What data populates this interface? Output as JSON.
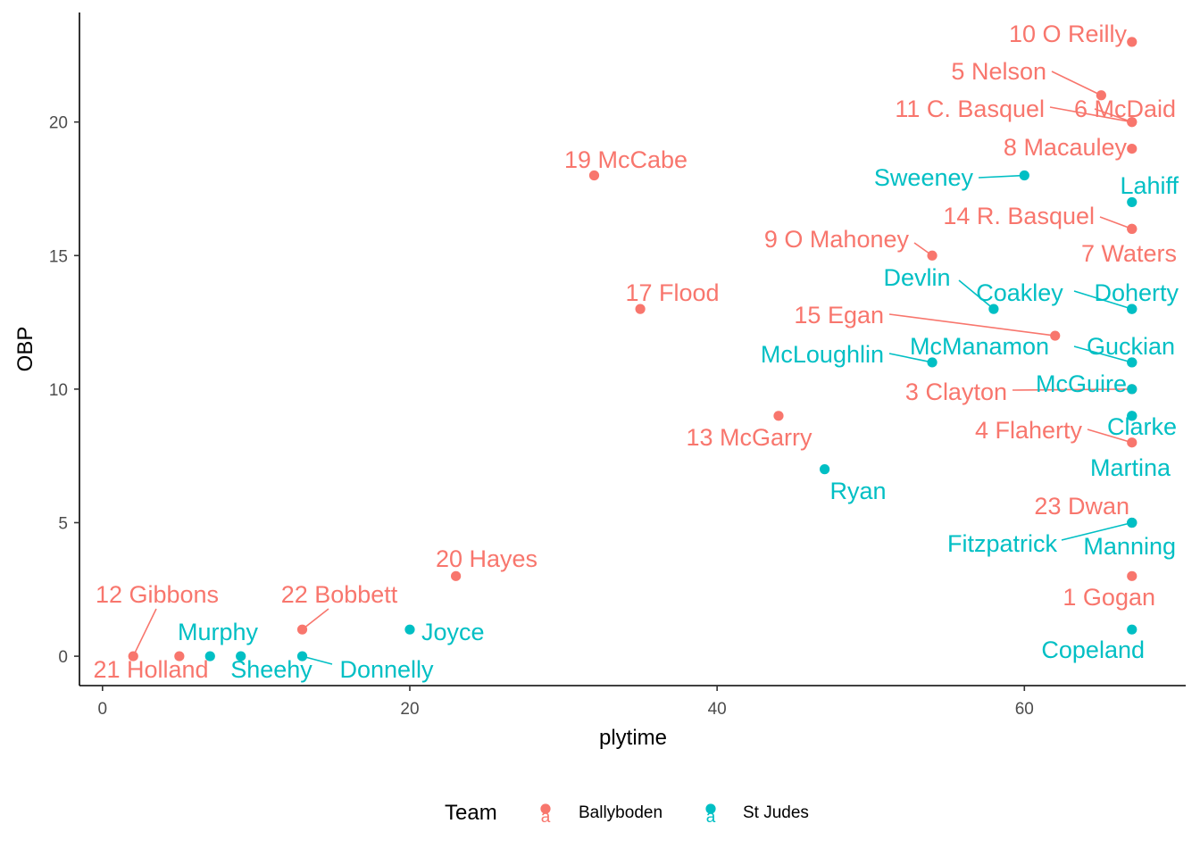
{
  "chart_data": {
    "type": "scatter",
    "xlabel": "plytime",
    "ylabel": "OBP",
    "xlim": [
      -1.5,
      70.5
    ],
    "ylim": [
      -1.1,
      24.1
    ],
    "x_ticks": [
      0,
      20,
      40,
      60
    ],
    "y_ticks": [
      0,
      5,
      10,
      15,
      20
    ],
    "grid": false,
    "legend": {
      "title": "Team",
      "position": "bottom",
      "key_glyph": "a",
      "entries": [
        {
          "name": "Ballyboden",
          "color": "#F8766D"
        },
        {
          "name": "St Judes",
          "color": "#00BFC4"
        }
      ]
    },
    "series": [
      {
        "name": "Ballyboden",
        "color": "#F8766D",
        "points": [
          {
            "label": "10  O Reilly",
            "x": 67,
            "y": 23
          },
          {
            "label": "5 Nelson",
            "x": 65,
            "y": 21
          },
          {
            "label": "6 McDaid",
            "x": 67,
            "y": 20
          },
          {
            "label": "11 C. Basquel",
            "x": 67,
            "y": 20
          },
          {
            "label": "8 Macauley",
            "x": 67,
            "y": 19
          },
          {
            "label": "19 McCabe",
            "x": 32,
            "y": 18
          },
          {
            "label": "14 R. Basquel",
            "x": 67,
            "y": 16
          },
          {
            "label": "7 Waters",
            "x": 67,
            "y": 16
          },
          {
            "label": "9 O Mahoney",
            "x": 54,
            "y": 15
          },
          {
            "label": "17 Flood",
            "x": 35,
            "y": 13
          },
          {
            "label": "15 Egan",
            "x": 62,
            "y": 12
          },
          {
            "label": "3 Clayton",
            "x": 67,
            "y": 10
          },
          {
            "label": "13 McGarry",
            "x": 44,
            "y": 9
          },
          {
            "label": "4 Flaherty",
            "x": 67,
            "y": 8
          },
          {
            "label": "23 Dwan",
            "x": 67,
            "y": 5
          },
          {
            "label": "20 Hayes",
            "x": 23,
            "y": 3
          },
          {
            "label": "1 Gogan",
            "x": 67,
            "y": 3
          },
          {
            "label": "22 Bobbett",
            "x": 13,
            "y": 1
          },
          {
            "label": "12 Gibbons",
            "x": 2,
            "y": 0
          },
          {
            "label": "21 Holland",
            "x": 5,
            "y": 0
          }
        ]
      },
      {
        "name": "St Judes",
        "color": "#00BFC4",
        "points": [
          {
            "label": "Sweeney",
            "x": 60,
            "y": 18
          },
          {
            "label": "Lahiff",
            "x": 67,
            "y": 17
          },
          {
            "label": "Devlin",
            "x": 58,
            "y": 13
          },
          {
            "label": "Coakley",
            "x": 67,
            "y": 13
          },
          {
            "label": "Doherty",
            "x": 67,
            "y": 13
          },
          {
            "label": "McLoughlin",
            "x": 54,
            "y": 11
          },
          {
            "label": "McManamon",
            "x": 67,
            "y": 11
          },
          {
            "label": "Guckian",
            "x": 67,
            "y": 11
          },
          {
            "label": "McGuire",
            "x": 67,
            "y": 10
          },
          {
            "label": "Clarke",
            "x": 67,
            "y": 9
          },
          {
            "label": "Martina",
            "x": 67,
            "y": 9
          },
          {
            "label": "Ryan",
            "x": 47,
            "y": 7
          },
          {
            "label": "Fitzpatrick",
            "x": 67,
            "y": 5
          },
          {
            "label": "Manning",
            "x": 67,
            "y": 5
          },
          {
            "label": "Joyce",
            "x": 20,
            "y": 1
          },
          {
            "label": "Copeland",
            "x": 67,
            "y": 1
          },
          {
            "label": "Murphy",
            "x": 7,
            "y": 0
          },
          {
            "label": "Sheehy",
            "x": 9,
            "y": 0
          },
          {
            "label": "Donnelly",
            "x": 13,
            "y": 0
          }
        ]
      }
    ]
  }
}
